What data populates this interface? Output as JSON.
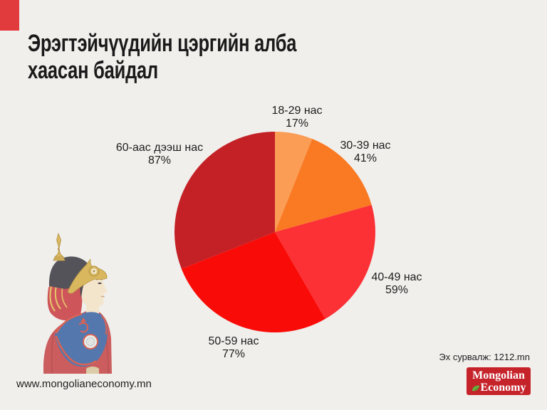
{
  "page": {
    "title_line1": "Эрэгтэйчүүдийн цэргийн алба",
    "title_line2": "хаасан байдал",
    "footer_url": "www.mongolianeconomy.mn",
    "source_label": "Эх сурвалж: 1212.mn",
    "background_color": "#f0efec",
    "accent_color": "#e23b3e",
    "text_color": "#1a1a1a"
  },
  "logo": {
    "line1": "Mongolian",
    "line2": "Economy",
    "background_color": "#c6222a",
    "text_color": "#ffffff",
    "leaf_icon_color": "#5d9e33"
  },
  "chart_data": {
    "type": "pie",
    "title": "Эрэгтэйчүүдийн цэргийн алба хаасан байдал",
    "legend_position": "none",
    "labels": "outside, category name and percent on two lines",
    "start_angle": "12 o'clock",
    "direction": "clockwise",
    "angle_rule": "slice angle proportional to value / sum(values); percentages do not sum to 100",
    "categories": [
      "18-29 нас",
      "30-39 нас",
      "40-49 нас",
      "50-59 нас",
      "60-аас дээш нас"
    ],
    "values": [
      17,
      41,
      59,
      77,
      87
    ],
    "slices": [
      {
        "name": "18-29 нас",
        "value": 17,
        "pct_label": "17%",
        "color": "#fb9d55"
      },
      {
        "name": "30-39 нас",
        "value": 41,
        "pct_label": "41%",
        "color": "#fa7a24"
      },
      {
        "name": "40-49 нас",
        "value": 59,
        "pct_label": "59%",
        "color": "#fb3136"
      },
      {
        "name": "50-59 нас",
        "value": 77,
        "pct_label": "77%",
        "color": "#f90c08"
      },
      {
        "name": "60-аас дээш нас",
        "value": 87,
        "pct_label": "87%",
        "color": "#c42126"
      }
    ]
  },
  "illustration": {
    "name": "mongolian-soldier",
    "description": "side profile of a soldier in traditional Mongolian ceremonial helmet and uniform"
  }
}
